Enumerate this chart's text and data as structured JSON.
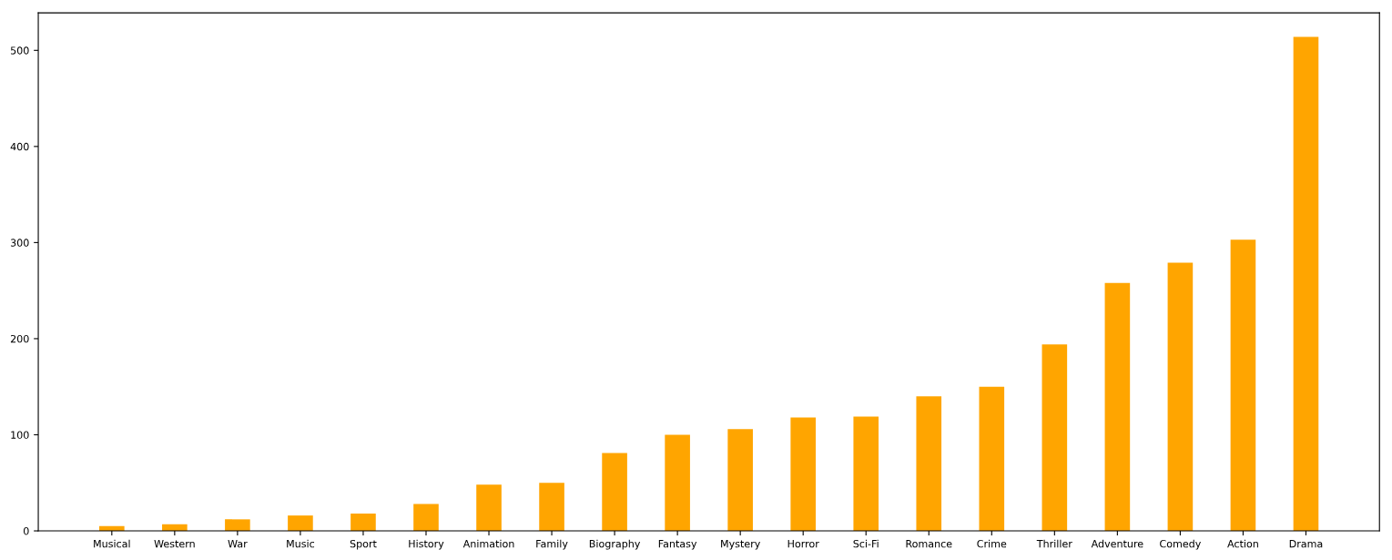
{
  "chart_data": {
    "type": "bar",
    "categories": [
      "Musical",
      "Western",
      "War",
      "Music",
      "Sport",
      "History",
      "Animation",
      "Family",
      "Biography",
      "Fantasy",
      "Mystery",
      "Horror",
      "Sci-Fi",
      "Romance",
      "Crime",
      "Thriller",
      "Adventure",
      "Comedy",
      "Action",
      "Drama"
    ],
    "values": [
      5,
      7,
      12,
      16,
      18,
      28,
      48,
      50,
      81,
      100,
      106,
      118,
      119,
      140,
      150,
      194,
      258,
      279,
      303,
      514
    ],
    "color": "#ffa500",
    "ylim": [
      0,
      539
    ],
    "yticks": [
      0,
      100,
      200,
      300,
      400,
      500
    ],
    "grid": false
  }
}
